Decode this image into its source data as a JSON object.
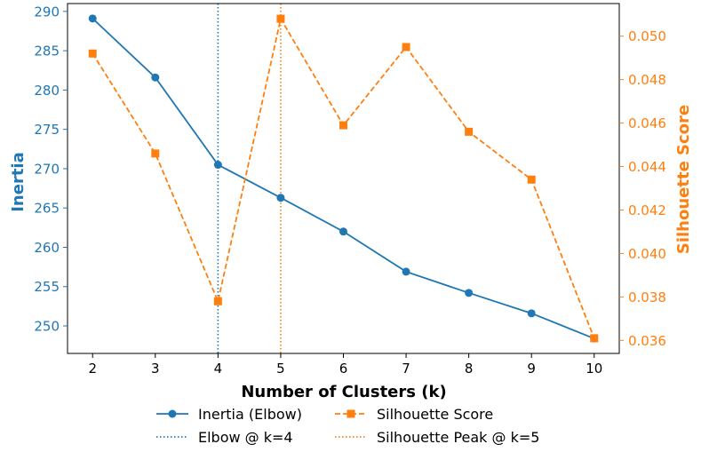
{
  "chart_data": {
    "type": "line",
    "xlabel": "Number of Clusters (k)",
    "ylabel_left": "Inertia",
    "ylabel_right": "Silhouette Score",
    "x": [
      2,
      3,
      4,
      5,
      6,
      7,
      8,
      9,
      10
    ],
    "x_ticks": [
      "2",
      "3",
      "4",
      "5",
      "6",
      "7",
      "8",
      "9",
      "10"
    ],
    "xlim": [
      1.6,
      10.4
    ],
    "ylim_left": [
      246.5,
      291.0
    ],
    "ylim_right": [
      0.0354,
      0.0515
    ],
    "y_ticks_left": [
      "250",
      "255",
      "260",
      "265",
      "270",
      "275",
      "280",
      "285",
      "290"
    ],
    "y_ticks_right": [
      "0.036",
      "0.038",
      "0.040",
      "0.042",
      "0.044",
      "0.046",
      "0.048",
      "0.050"
    ],
    "series": [
      {
        "name": "Inertia (Elbow)",
        "axis": "left",
        "color": "#1f77b4",
        "marker": "circle",
        "linestyle": "solid",
        "values": [
          289.1,
          281.6,
          270.5,
          266.3,
          262.0,
          256.9,
          254.2,
          251.6,
          248.4
        ]
      },
      {
        "name": "Silhouette Score",
        "axis": "right",
        "color": "#ff7f0e",
        "marker": "square",
        "linestyle": "dashed",
        "values": [
          0.0492,
          0.0446,
          0.0378,
          0.0508,
          0.0459,
          0.0495,
          0.0456,
          0.0434,
          0.0361
        ]
      }
    ],
    "vlines": [
      {
        "name": "Elbow @ k=4",
        "x": 4,
        "color": "#1f77b4",
        "linestyle": "dotted"
      },
      {
        "name": "Silhouette Peak @ k=5",
        "x": 5,
        "color": "#ff7f0e",
        "linestyle": "dotted"
      }
    ],
    "legend": {
      "placement": "bottom-center",
      "entries": [
        "Inertia (Elbow)",
        "Silhouette Score",
        "Elbow @ k=4",
        "Silhouette Peak @ k=5"
      ]
    },
    "grid": false
  }
}
